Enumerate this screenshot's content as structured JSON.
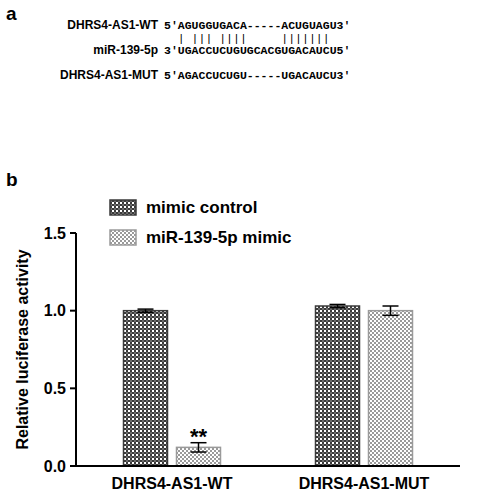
{
  "panel_labels": [
    "a",
    "b"
  ],
  "alignment": {
    "rows": [
      {
        "name": "DHRS4-AS1-WT",
        "sequence": "5'AGUGGUGACA-----ACUGUAGU3'"
      },
      {
        "name": "miR-139-5p",
        "sequence": "3'UGACCUCUGUGCACGUGACAUCU5'"
      },
      {
        "name": "DHRS4-AS1-MUT",
        "sequence": "5'AGACCUCUGU-----UGACAUCU3'"
      }
    ],
    "pairing": "  | ||| ||||     |||||||  "
  },
  "chart_data": {
    "type": "bar",
    "categories": [
      "DHRS4-AS1-WT",
      "DHRS4-AS1-MUT"
    ],
    "series": [
      {
        "name": "mimic control",
        "color": "#3a3a3a",
        "values": [
          1.0,
          1.03
        ],
        "errors": [
          0.01,
          0.01
        ]
      },
      {
        "name": "miR-139-5p mimic",
        "color": "#9a9a9a",
        "values": [
          0.12,
          1.0
        ],
        "errors": [
          0.03,
          0.03
        ]
      }
    ],
    "y_label": "Relative luciferase activity",
    "ylim": [
      0,
      1.5
    ],
    "yticks": [
      {
        "value": 0,
        "label": "0.0"
      },
      {
        "value": 0.5,
        "label": "0.5"
      },
      {
        "value": 1.0,
        "label": "1.0"
      },
      {
        "value": 1.5,
        "label": "1.5"
      }
    ],
    "annotations": [
      {
        "text": "**",
        "series": 1,
        "index": 0
      }
    ],
    "legend": "top-left",
    "grid": false
  }
}
